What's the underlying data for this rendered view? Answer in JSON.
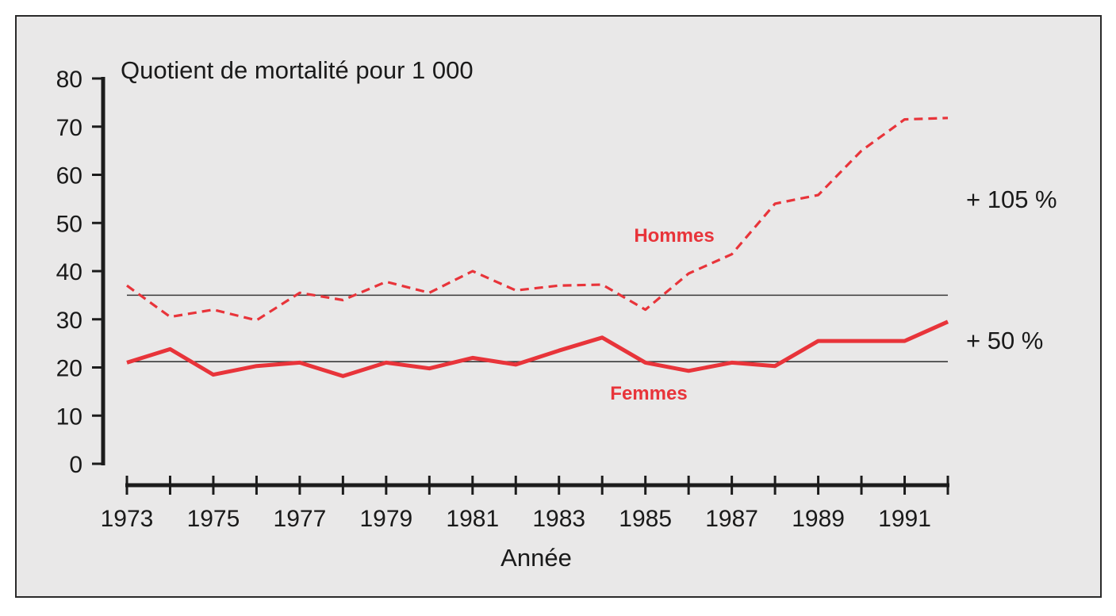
{
  "colors": {
    "background": "#e9e8e8",
    "frame": "#2a2a2a",
    "axis": "#1c1c1c",
    "series": "#e8343a",
    "reference": "#3a3a3a"
  },
  "chart_data": {
    "type": "line",
    "title": "Quotient de mortalité pour 1 000",
    "xlabel": "Année",
    "ylabel": "Quotient de mortalité pour 1 000",
    "x": [
      1973,
      1974,
      1975,
      1976,
      1977,
      1978,
      1979,
      1980,
      1981,
      1982,
      1983,
      1984,
      1985,
      1986,
      1987,
      1988,
      1989,
      1990,
      1991,
      1992
    ],
    "xlim": [
      1973,
      1992
    ],
    "ylim": [
      0,
      80
    ],
    "yticks": [
      0,
      10,
      20,
      30,
      40,
      50,
      60,
      70,
      80
    ],
    "xtick_labels": [
      "1973",
      "1975",
      "1977",
      "1979",
      "1981",
      "1983",
      "1985",
      "1987",
      "1989",
      "1991"
    ],
    "xtick_label_years": [
      1973,
      1975,
      1977,
      1979,
      1981,
      1983,
      1985,
      1987,
      1989,
      1991
    ],
    "grid": false,
    "series": [
      {
        "name": "Hommes",
        "style": "dashed",
        "values": [
          37,
          30.5,
          32,
          29.8,
          35.5,
          34,
          37.8,
          35.5,
          40,
          36,
          37,
          37.2,
          32,
          39.5,
          43.5,
          54,
          55.8,
          65,
          71.5,
          71.8
        ]
      },
      {
        "name": "Femmes",
        "style": "solid",
        "values": [
          21,
          23.8,
          18.5,
          20.3,
          21,
          18.2,
          21,
          19.8,
          22,
          20.6,
          23.5,
          26.2,
          21,
          19.3,
          21,
          20.3,
          25.5,
          25.5,
          25.5,
          29.5
        ]
      }
    ],
    "reference_lines": [
      {
        "value": 35,
        "from": 1973,
        "to": 1992
      },
      {
        "value": 21.2,
        "from": 1973,
        "to": 1992
      }
    ],
    "annotations": [
      {
        "text": "Hommes",
        "series": "Hommes"
      },
      {
        "text": "Femmes",
        "series": "Femmes"
      },
      {
        "text": "+ 105 %",
        "series": "Hommes"
      },
      {
        "text": "+ 50 %",
        "series": "Femmes"
      }
    ]
  }
}
